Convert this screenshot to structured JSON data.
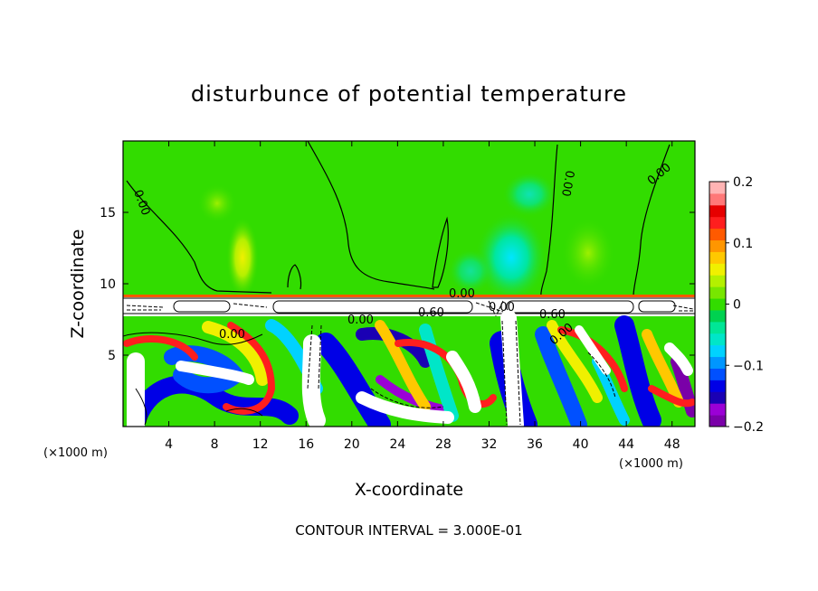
{
  "chart_data": {
    "type": "heatmap",
    "title": "disturbunce of potential temperature",
    "xlabel": "X-coordinate",
    "ylabel": "Z-coordinate",
    "x_unit": "(×1000 m)",
    "x_unit_right": "(×1000 m)",
    "xlim": [
      0,
      50
    ],
    "ylim": [
      0,
      20
    ],
    "x_ticks": [
      "4",
      "8",
      "12",
      "16",
      "20",
      "24",
      "28",
      "32",
      "36",
      "40",
      "44",
      "48"
    ],
    "y_ticks": [
      "5",
      "10",
      "15"
    ],
    "colorbar": {
      "range": [
        -0.2,
        0.2
      ],
      "tick_labels": [
        "0.2",
        "0.1",
        "0",
        "−0.1",
        "−0.2"
      ],
      "colors": [
        "#7a00a8",
        "#9b00d6",
        "#1a00b4",
        "#0000e6",
        "#0050ff",
        "#0096ff",
        "#00d2ff",
        "#00e6c8",
        "#00e696",
        "#00d250",
        "#32dc00",
        "#78e600",
        "#b4f000",
        "#f0f000",
        "#ffc800",
        "#ff9600",
        "#ff5a00",
        "#ff1e1e",
        "#e60000",
        "#ff7878",
        "#ffb4b4"
      ]
    },
    "contour_labels": [
      "0.00",
      "0.00",
      "0.00",
      "0.00",
      "0.00",
      "0.00",
      "0.60",
      "0.00",
      "0.00",
      "0.60",
      "0.00"
    ],
    "footer": "CONTOUR INTERVAL = 3.000E-01"
  }
}
